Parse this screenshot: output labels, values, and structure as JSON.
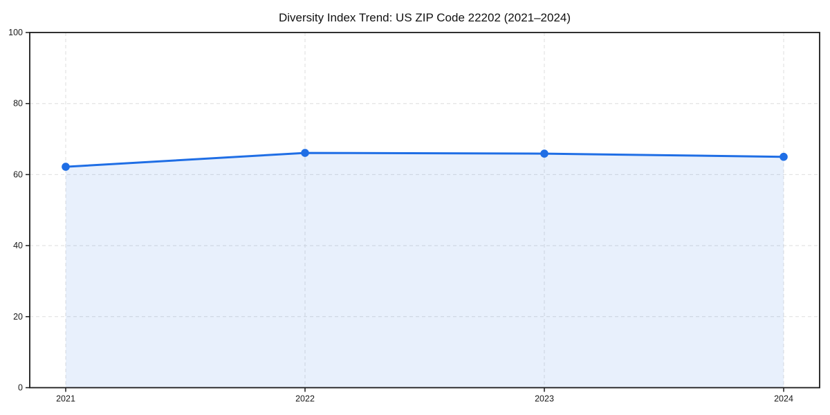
{
  "chart_data": {
    "type": "line",
    "title": "Diversity Index Trend: US ZIP Code 22202 (2021–2024)",
    "x": [
      2021,
      2022,
      2023,
      2024
    ],
    "xticklabels": [
      "2021",
      "2022",
      "2023",
      "2024"
    ],
    "series": [
      {
        "name": "Diversity Index",
        "values": [
          62.2,
          66.1,
          65.9,
          65.0
        ]
      }
    ],
    "xlabel": "",
    "ylabel": "",
    "ylim": [
      0,
      100
    ],
    "yticks": [
      0,
      20,
      40,
      60,
      80,
      100
    ],
    "grid": true,
    "grid_style": "dashed",
    "legend_position": "none",
    "area_fill": true,
    "marker": "circle",
    "colors": {
      "line": "#1f6ee5",
      "fill": "rgba(31,110,229,0.10)",
      "grid": "#dedede",
      "spine": "#1a1a1a",
      "text": "#1a1a1a",
      "background": "#ffffff"
    }
  }
}
